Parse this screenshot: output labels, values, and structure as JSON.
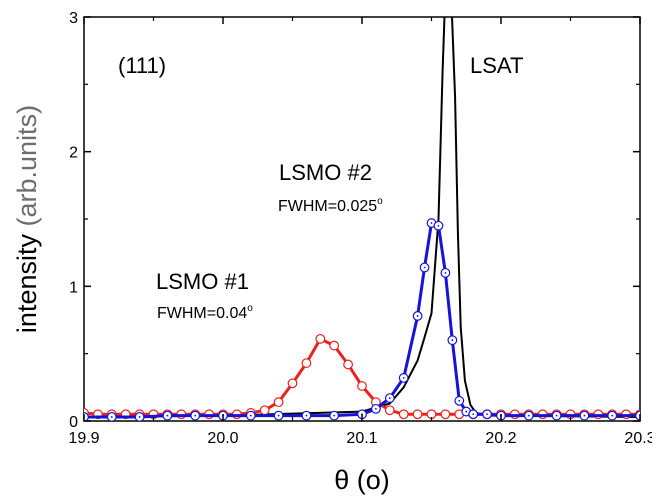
{
  "chart_data": {
    "type": "line",
    "xlabel": "θ (o)",
    "ylabel_main": "intensity",
    "ylabel_units": "(arb.units)",
    "xlim": [
      19.9,
      20.3
    ],
    "ylim": [
      0,
      3
    ],
    "x_ticks": [
      "19.9",
      "20.0",
      "20.1",
      "20.2",
      "20.3"
    ],
    "y_ticks": [
      "0",
      "1",
      "2",
      "3"
    ],
    "grid": false,
    "annotations": {
      "reflection": "(111)",
      "substrate": "LSAT",
      "film1": "LSMO #1",
      "film1_fwhm": "FWHM=0.04",
      "film1_fwhm_unit": "o",
      "film2": "LSMO #2",
      "film2_fwhm": "FWHM=0.025",
      "film2_fwhm_unit": "o"
    },
    "colors": {
      "lsmo1": "#e8221c",
      "lsmo2": "#1414d8",
      "lsat": "#000000"
    },
    "series": [
      {
        "name": "LSMO #1",
        "color": "#e8221c",
        "marker": "open-circle",
        "x": [
          19.9,
          19.91,
          19.92,
          19.93,
          19.94,
          19.95,
          19.96,
          19.97,
          19.98,
          19.99,
          20.0,
          20.01,
          20.02,
          20.03,
          20.04,
          20.05,
          20.06,
          20.07,
          20.08,
          20.09,
          20.1,
          20.11,
          20.12,
          20.13,
          20.14,
          20.15,
          20.16,
          20.17,
          20.18,
          20.19,
          20.2,
          20.21,
          20.22,
          20.23,
          20.24,
          20.25,
          20.26,
          20.27,
          20.28,
          20.29,
          20.3
        ],
        "y": [
          0.06,
          0.05,
          0.05,
          0.05,
          0.05,
          0.05,
          0.05,
          0.05,
          0.05,
          0.05,
          0.05,
          0.05,
          0.06,
          0.08,
          0.14,
          0.28,
          0.43,
          0.61,
          0.56,
          0.42,
          0.26,
          0.14,
          0.08,
          0.05,
          0.05,
          0.05,
          0.05,
          0.05,
          0.05,
          0.05,
          0.05,
          0.05,
          0.05,
          0.05,
          0.05,
          0.05,
          0.05,
          0.05,
          0.05,
          0.05,
          0.05
        ]
      },
      {
        "name": "LSMO #2",
        "color": "#1414d8",
        "marker": "open-circle-dot",
        "x": [
          19.9,
          19.92,
          19.94,
          19.96,
          19.98,
          20.0,
          20.02,
          20.04,
          20.06,
          20.08,
          20.1,
          20.11,
          20.12,
          20.13,
          20.14,
          20.145,
          20.15,
          20.155,
          20.16,
          20.165,
          20.17,
          20.175,
          20.18,
          20.19,
          20.2,
          20.22,
          20.24,
          20.26,
          20.28,
          20.3
        ],
        "y": [
          0.03,
          0.03,
          0.03,
          0.04,
          0.04,
          0.04,
          0.04,
          0.04,
          0.04,
          0.04,
          0.05,
          0.09,
          0.17,
          0.32,
          0.78,
          1.14,
          1.47,
          1.45,
          1.1,
          0.6,
          0.15,
          0.07,
          0.05,
          0.05,
          0.04,
          0.04,
          0.04,
          0.04,
          0.04,
          0.04
        ]
      },
      {
        "name": "LSAT",
        "color": "#000000",
        "marker": "none",
        "x": [
          19.9,
          20.0,
          20.1,
          20.12,
          20.13,
          20.14,
          20.145,
          20.15,
          20.155,
          20.158,
          20.16,
          20.161,
          20.164,
          20.167,
          20.169,
          20.171,
          20.174,
          20.178,
          20.182,
          20.19,
          20.2,
          20.3
        ],
        "y": [
          0.03,
          0.04,
          0.07,
          0.13,
          0.25,
          0.45,
          0.62,
          0.8,
          1.5,
          2.6,
          3.2,
          3.2,
          3.2,
          2.4,
          1.4,
          0.7,
          0.3,
          0.12,
          0.06,
          0.04,
          0.04,
          0.03
        ]
      }
    ]
  }
}
